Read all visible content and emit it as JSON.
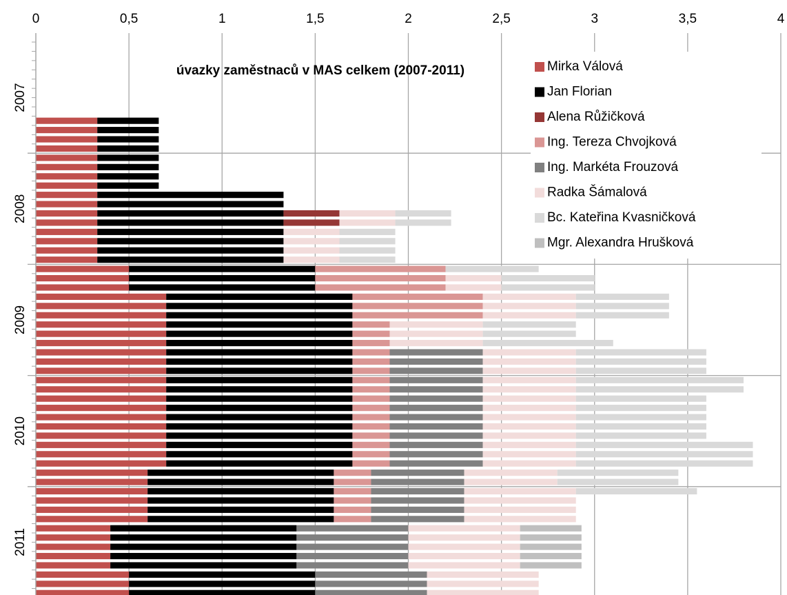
{
  "chart_data": {
    "type": "stacked-barh",
    "title": "úvazky zaměstnaců v MAS celkem (2007-2011)",
    "groups": [
      "2007",
      "2008",
      "2009",
      "2010",
      "2011"
    ],
    "xlim": [
      0,
      4
    ],
    "xticks": [
      0,
      {
        "value": 0.5,
        "label": "0,5"
      },
      1,
      {
        "value": 1.5,
        "label": "1,5"
      },
      2,
      {
        "value": 2.5,
        "label": "2,5"
      },
      3,
      {
        "value": 3.5,
        "label": "3,5"
      },
      4
    ],
    "grid": true,
    "legend": "upper right",
    "series": [
      {
        "name": "Mirka Válová",
        "color": "#c0504d",
        "values": [
          null,
          null,
          null,
          null,
          null,
          null,
          null,
          null,
          0.33,
          0.33,
          0.33,
          0.33,
          0.33,
          0.33,
          0.33,
          0.33,
          0.33,
          0.33,
          0.33,
          0.33,
          0.33,
          0.33,
          0.33,
          0.33,
          0.5,
          0.5,
          0.5,
          0.7,
          0.7,
          0.7,
          0.7,
          0.7,
          0.7,
          0.7,
          0.7,
          0.7,
          0.7,
          0.7,
          0.7,
          0.7,
          0.7,
          0.7,
          0.7,
          0.7,
          0.7,
          0.7,
          0.6,
          0.6,
          0.6,
          0.6,
          0.6,
          0.6,
          0.4,
          0.4,
          0.4,
          0.4,
          0.4,
          0.5,
          0.5,
          0.5
        ]
      },
      {
        "name": "Jan Florian",
        "color": "#000000",
        "values": [
          null,
          null,
          null,
          null,
          null,
          null,
          null,
          null,
          0.33,
          0.33,
          0.33,
          0.33,
          0.33,
          0.33,
          0.33,
          0.33,
          1,
          1,
          1,
          1,
          1,
          1,
          1,
          1,
          1,
          1,
          1,
          1,
          1,
          1,
          1,
          1,
          1,
          1,
          1,
          1,
          1,
          1,
          1,
          1,
          1,
          1,
          1,
          1,
          1,
          1,
          1,
          1,
          1,
          1,
          1,
          1,
          1,
          1,
          1,
          1,
          1,
          1,
          1,
          1
        ]
      },
      {
        "name": "Alena Růžičková",
        "color": "#953735",
        "values": [
          null,
          null,
          null,
          null,
          null,
          null,
          null,
          null,
          null,
          null,
          null,
          null,
          null,
          null,
          null,
          null,
          null,
          null,
          0.3,
          0.3,
          null,
          null,
          null,
          null,
          null,
          null,
          null,
          null,
          null,
          null,
          null,
          null,
          null,
          null,
          null,
          null,
          null,
          null,
          null,
          null,
          null,
          null,
          null,
          null,
          null,
          null,
          null,
          null,
          null,
          null,
          null,
          null,
          null,
          null,
          null,
          null,
          null,
          null,
          null,
          null
        ]
      },
      {
        "name": "Ing. Tereza Chvojková",
        "color": "#da9694",
        "values": [
          null,
          null,
          null,
          null,
          null,
          null,
          null,
          null,
          null,
          null,
          null,
          null,
          null,
          null,
          null,
          null,
          null,
          null,
          null,
          null,
          null,
          null,
          null,
          null,
          0.7,
          0.7,
          0.7,
          0.7,
          0.7,
          0.7,
          0.2,
          0.2,
          0.2,
          0.2,
          0.2,
          0.2,
          0.2,
          0.2,
          0.2,
          0.2,
          0.2,
          0.2,
          0.2,
          0.2,
          0.2,
          0.2,
          0.2,
          0.2,
          0.2,
          0.2,
          0.2,
          0.2,
          null,
          null,
          null,
          null,
          null,
          null,
          null,
          null
        ]
      },
      {
        "name": "Ing. Markéta Frouzová",
        "color": "#808080",
        "values": [
          null,
          null,
          null,
          null,
          null,
          null,
          null,
          null,
          null,
          null,
          null,
          null,
          null,
          null,
          null,
          null,
          null,
          null,
          null,
          null,
          null,
          null,
          null,
          null,
          null,
          null,
          null,
          null,
          null,
          null,
          null,
          null,
          null,
          0.5,
          0.5,
          0.5,
          0.5,
          0.5,
          0.5,
          0.5,
          0.5,
          0.5,
          0.5,
          0.5,
          0.5,
          0.5,
          0.5,
          0.5,
          0.5,
          0.5,
          0.5,
          0.5,
          0.6,
          0.6,
          0.6,
          0.6,
          0.6,
          0.6,
          0.6,
          0.6
        ]
      },
      {
        "name": "Radka Šámalová",
        "color": "#f2dcdb",
        "values": [
          null,
          null,
          null,
          null,
          null,
          null,
          null,
          null,
          null,
          null,
          null,
          null,
          null,
          null,
          null,
          null,
          null,
          null,
          0.3,
          0.3,
          0.3,
          0.3,
          0.3,
          0.3,
          null,
          0.3,
          0.3,
          0.5,
          0.5,
          0.5,
          0.5,
          0.5,
          0.5,
          0.5,
          0.5,
          0.5,
          0.5,
          0.5,
          0.5,
          0.5,
          0.5,
          0.5,
          0.5,
          0.5,
          0.5,
          0.5,
          0.5,
          0.5,
          0.6,
          0.6,
          0.6,
          0.6,
          0.6,
          0.6,
          0.6,
          0.6,
          0.6,
          0.6,
          0.6,
          0.6
        ]
      },
      {
        "name": "Bc. Kateřina Kvasničková",
        "color": "#d9d9d9",
        "values": [
          null,
          null,
          null,
          null,
          null,
          null,
          null,
          null,
          null,
          null,
          null,
          null,
          null,
          null,
          null,
          null,
          null,
          null,
          0.3,
          0.3,
          0.3,
          0.3,
          0.3,
          0.3,
          0.5,
          0.5,
          0.5,
          0.5,
          0.5,
          0.5,
          0.5,
          0.5,
          0.7,
          0.7,
          0.7,
          0.7,
          0.9,
          0.9,
          0.7,
          0.7,
          0.7,
          0.7,
          0.7,
          0.95,
          0.95,
          0.95,
          0.65,
          0.65,
          0.65,
          null,
          null,
          null,
          null,
          null,
          null,
          null,
          null,
          null,
          null,
          null
        ]
      },
      {
        "name": "Mgr. Alexandra Hrušková",
        "color": "#bfbfbf",
        "values": [
          null,
          null,
          null,
          null,
          null,
          null,
          null,
          null,
          null,
          null,
          null,
          null,
          null,
          null,
          null,
          null,
          null,
          null,
          null,
          null,
          null,
          null,
          null,
          null,
          null,
          null,
          null,
          null,
          null,
          null,
          null,
          null,
          null,
          null,
          null,
          null,
          null,
          null,
          null,
          null,
          null,
          null,
          null,
          null,
          null,
          null,
          null,
          null,
          null,
          null,
          null,
          null,
          0.33,
          0.33,
          0.33,
          0.33,
          0.33,
          null,
          null,
          null
        ]
      }
    ]
  }
}
